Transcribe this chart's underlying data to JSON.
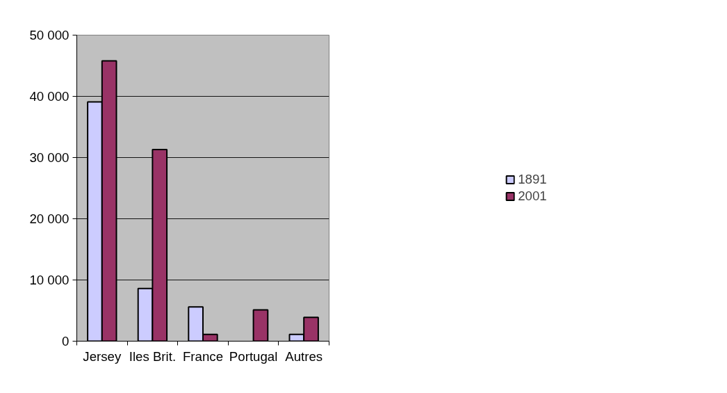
{
  "chart_data": {
    "type": "bar",
    "categories": [
      "Jersey",
      "Iles Brit.",
      "France",
      "Portugal",
      "Autres"
    ],
    "series": [
      {
        "name": "1891",
        "color": "#ccccff",
        "values": [
          39100,
          8600,
          5600,
          null,
          1100
        ]
      },
      {
        "name": "2001",
        "color": "#993366",
        "values": [
          45800,
          31300,
          1100,
          5100,
          3900
        ]
      }
    ],
    "ylim": [
      0,
      50000
    ],
    "yticks": [
      {
        "value": 0,
        "label": "0"
      },
      {
        "value": 10000,
        "label": "10 000"
      },
      {
        "value": 20000,
        "label": "20 000"
      },
      {
        "value": 30000,
        "label": "30 000"
      },
      {
        "value": 40000,
        "label": "40 000"
      },
      {
        "value": 50000,
        "label": "50 000"
      }
    ],
    "grid": "y",
    "legend": "right"
  }
}
